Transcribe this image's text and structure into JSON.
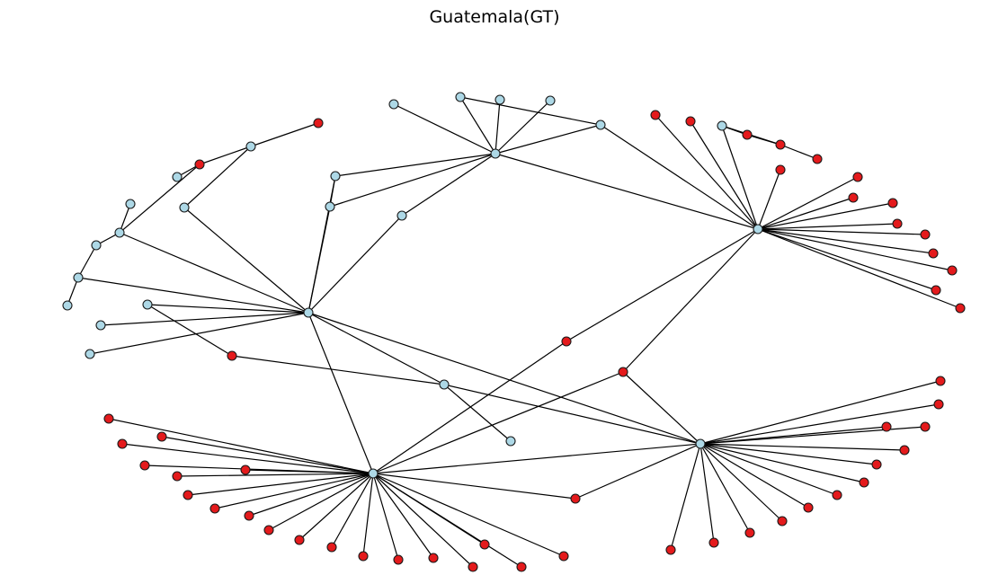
{
  "title": "Guatemala(GT)",
  "colors": {
    "hub_node": "#add8e6",
    "leaf_node": "#e41a1c",
    "edge": "#000000",
    "node_outline": "#1a1a1a"
  }
}
